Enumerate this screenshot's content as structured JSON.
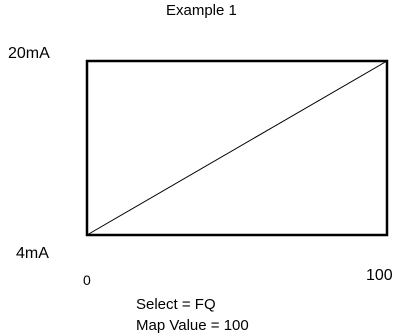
{
  "title": "Example 1",
  "y_axis": {
    "top_label": "20mA",
    "bottom_label": "4mA"
  },
  "x_axis": {
    "left_label": "0",
    "right_label": "100"
  },
  "footer": {
    "select": "Select = FQ",
    "map_value": "Map Value = 100"
  },
  "colors": {
    "stroke": "#000000",
    "background": "#ffffff"
  }
}
